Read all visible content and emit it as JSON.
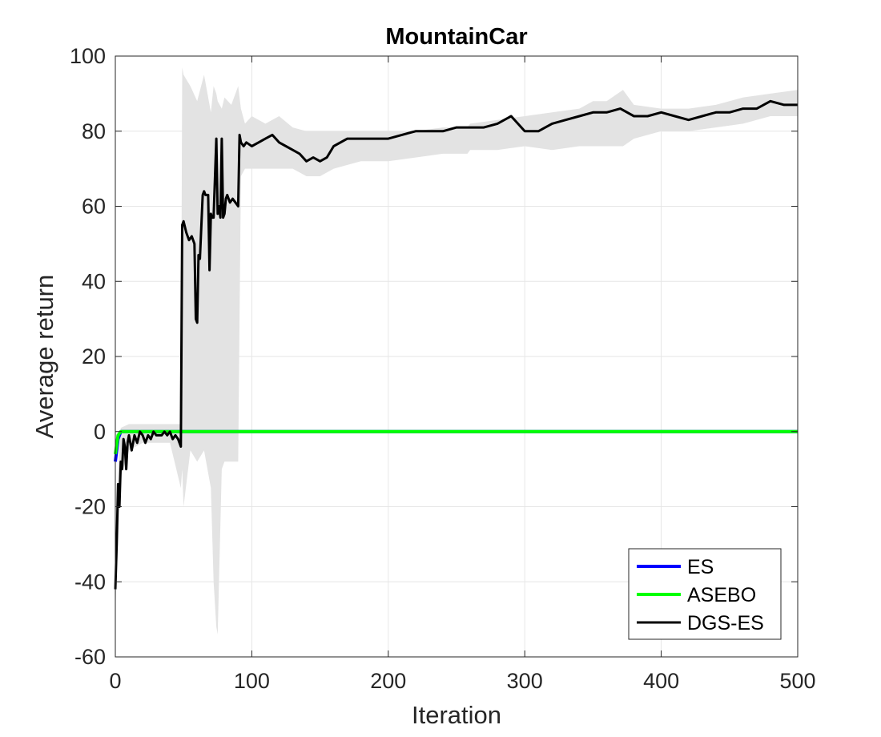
{
  "chart_data": {
    "type": "line",
    "title": "MountainCar",
    "xlabel": "Iteration",
    "ylabel": "Average return",
    "xlim": [
      0,
      500
    ],
    "ylim": [
      -60,
      100
    ],
    "xticks": [
      0,
      100,
      200,
      300,
      400,
      500
    ],
    "yticks": [
      -60,
      -40,
      -20,
      0,
      20,
      40,
      60,
      80,
      100
    ],
    "grid": true,
    "legend_location": "bottom-right",
    "series": [
      {
        "name": "ES",
        "color": "#0000ff",
        "x": [
          0,
          2,
          4,
          500
        ],
        "y": [
          -8,
          -2,
          0,
          0
        ]
      },
      {
        "name": "ASEBO",
        "color": "#00ff00",
        "x": [
          0,
          2,
          4,
          500
        ],
        "y": [
          -6,
          -1,
          0,
          0
        ]
      },
      {
        "name": "DGS-ES",
        "color": "#000000",
        "x": [
          0,
          1,
          2,
          3,
          4,
          5,
          6,
          7,
          8,
          9,
          10,
          12,
          14,
          16,
          18,
          20,
          22,
          24,
          26,
          28,
          30,
          32,
          34,
          36,
          38,
          40,
          42,
          44,
          46,
          48,
          49,
          50,
          52,
          54,
          56,
          58,
          59,
          60,
          61,
          62,
          64,
          65,
          66,
          68,
          69,
          70,
          71,
          72,
          74,
          75,
          76,
          77,
          78,
          79,
          80,
          81,
          82,
          84,
          86,
          88,
          90,
          91,
          92,
          94,
          96,
          100,
          105,
          110,
          115,
          120,
          125,
          130,
          135,
          140,
          145,
          150,
          155,
          160,
          170,
          180,
          190,
          200,
          210,
          220,
          230,
          240,
          250,
          260,
          270,
          280,
          290,
          300,
          310,
          320,
          330,
          340,
          350,
          360,
          370,
          380,
          390,
          400,
          410,
          420,
          430,
          440,
          450,
          460,
          470,
          480,
          490,
          500
        ],
        "y": [
          -42,
          -30,
          -14,
          -20,
          -8,
          -10,
          -2,
          -4,
          -10,
          -3,
          -1,
          -5,
          -1,
          -3,
          0,
          -1,
          -3,
          -1,
          -2,
          0,
          -1,
          -1,
          -1,
          0,
          -1,
          0,
          -2,
          -1,
          -2,
          -4,
          55,
          56,
          53,
          51,
          52,
          50,
          30,
          29,
          47,
          46,
          63,
          64,
          63,
          63,
          43,
          58,
          57,
          57,
          78,
          58,
          60,
          57,
          78,
          57,
          58,
          62,
          63,
          61,
          62,
          61,
          60,
          79,
          77,
          76,
          77,
          76,
          77,
          78,
          79,
          77,
          76,
          75,
          74,
          72,
          73,
          72,
          73,
          76,
          78,
          78,
          78,
          78,
          79,
          80,
          80,
          80,
          81,
          81,
          81,
          82,
          84,
          80,
          80,
          82,
          83,
          84,
          85,
          85,
          86,
          84,
          84,
          85,
          84,
          83,
          84,
          85,
          85,
          86,
          86,
          88,
          87,
          87
        ]
      }
    ],
    "shaded_band": {
      "series": "DGS-ES",
      "color": "#e3e3e3",
      "x": [
        0,
        2,
        4,
        10,
        20,
        30,
        40,
        48,
        49,
        50,
        55,
        60,
        65,
        70,
        72,
        74,
        75,
        78,
        80,
        85,
        90,
        92,
        95,
        100,
        110,
        120,
        130,
        140,
        150,
        160,
        170,
        180,
        200,
        220,
        240,
        258,
        260,
        280,
        300,
        320,
        340,
        350,
        360,
        372,
        380,
        400,
        420,
        440,
        460,
        480,
        500
      ],
      "upper": [
        -36,
        -10,
        1,
        2,
        2,
        2,
        2,
        2,
        97,
        95,
        92,
        88,
        95,
        85,
        92,
        90,
        88,
        86,
        89,
        87,
        92,
        86,
        82,
        84,
        82,
        84,
        81,
        80,
        80,
        80,
        80,
        80,
        80,
        80,
        81,
        81,
        82,
        83,
        84,
        85,
        86,
        88,
        88,
        91,
        87,
        86,
        86,
        87,
        89,
        90,
        91
      ],
      "lower": [
        -48,
        -30,
        -12,
        -5,
        -3,
        -3,
        -3,
        -15,
        -10,
        -20,
        -5,
        -8,
        -5,
        -15,
        -40,
        -52,
        -54,
        -10,
        -8,
        -8,
        -8,
        68,
        70,
        70,
        70,
        70,
        70,
        68,
        68,
        70,
        71,
        72,
        72,
        73,
        74,
        74,
        75,
        75,
        76,
        75,
        76,
        76,
        76,
        76,
        78,
        80,
        80,
        81,
        82,
        84,
        84
      ]
    }
  }
}
